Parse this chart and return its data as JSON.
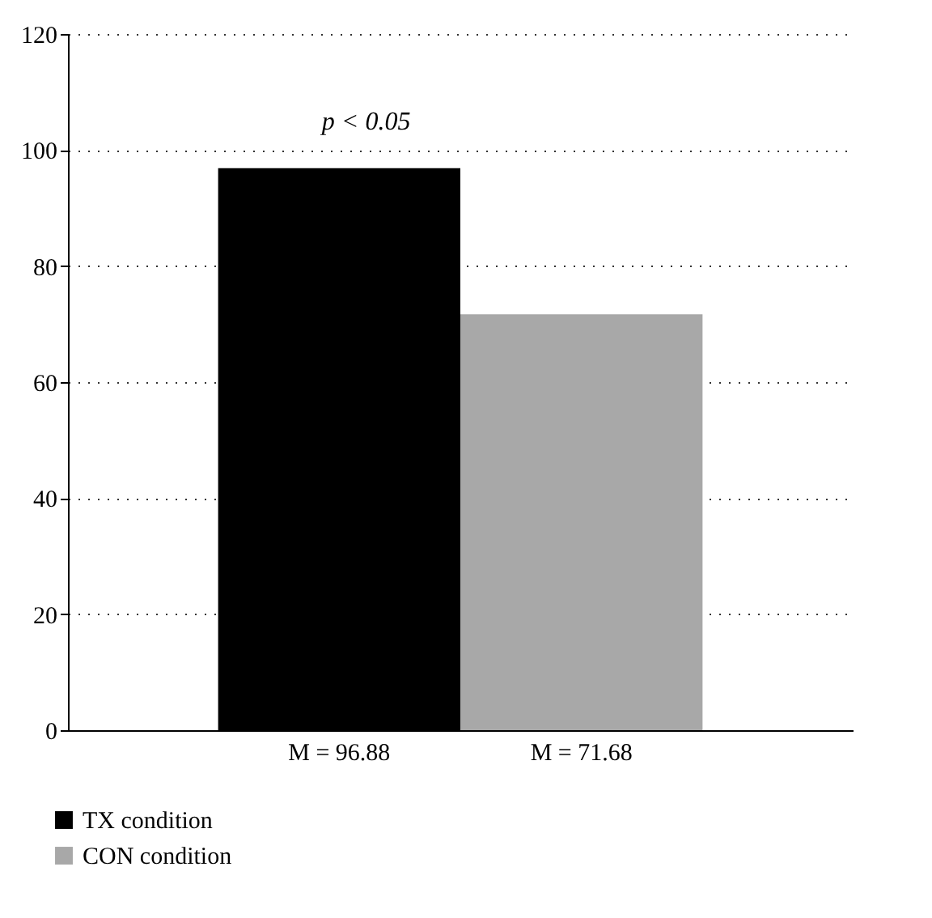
{
  "chart_data": {
    "type": "bar",
    "categories": [
      "M = 96.88",
      "M = 71.68"
    ],
    "series": [
      {
        "name": "TX condition",
        "color": "#000000",
        "values": [
          96.88,
          null
        ]
      },
      {
        "name": "CON condition",
        "color": "#a8a8a8",
        "values": [
          null,
          71.68
        ]
      }
    ],
    "ylim": [
      0,
      120
    ],
    "yticks": [
      0,
      20,
      40,
      60,
      80,
      100,
      120
    ],
    "grid": "y",
    "legend": "bottom left",
    "annotations": [
      "p < 0.05"
    ]
  }
}
